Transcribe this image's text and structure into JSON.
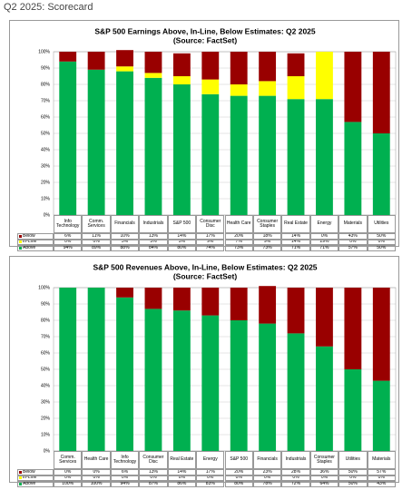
{
  "page_title": "Q2 2025: Scorecard",
  "chart_data": [
    {
      "type": "bar",
      "stacked": true,
      "title": "S&P 500 Earnings Above, In-Line, Below Estimates: Q2 2025",
      "subtitle": "(Source: FactSet)",
      "categories": [
        "Info Technology",
        "Comm. Services",
        "Financials",
        "Industrials",
        "S&P 500",
        "Consumer Disc",
        "Health Care",
        "Consumer Staples",
        "Real Estate",
        "Energy",
        "Materials",
        "Utilities"
      ],
      "series": [
        {
          "name": "Below",
          "color": "#990000",
          "values": [
            6,
            11,
            10,
            13,
            14,
            17,
            20,
            18,
            14,
            0,
            43,
            50
          ],
          "value_labels": [
            "6%",
            "11%",
            "10%",
            "13%",
            "14%",
            "17%",
            "20%",
            "18%",
            "14%",
            "0%",
            "43%",
            "50%"
          ]
        },
        {
          "name": "In-Line",
          "color": "#ffff00",
          "values": [
            0,
            0,
            3,
            3,
            5,
            9,
            7,
            9,
            14,
            29,
            0,
            0
          ],
          "value_labels": [
            "0%",
            "0%",
            "3%",
            "3%",
            "5%",
            "9%",
            "7%",
            "9%",
            "14%",
            "29%",
            "0%",
            "0%"
          ]
        },
        {
          "name": "Above",
          "color": "#00b050",
          "values": [
            94,
            89,
            88,
            84,
            80,
            74,
            73,
            73,
            71,
            71,
            57,
            50
          ],
          "value_labels": [
            "94%",
            "89%",
            "88%",
            "84%",
            "80%",
            "74%",
            "73%",
            "73%",
            "71%",
            "71%",
            "57%",
            "50%"
          ]
        }
      ],
      "ylim": [
        0,
        100
      ],
      "yticks": [
        {
          "value": 0,
          "label": "0%"
        },
        {
          "value": 10,
          "label": "10%"
        },
        {
          "value": 20,
          "label": "20%"
        },
        {
          "value": 30,
          "label": "30%"
        },
        {
          "value": 40,
          "label": "40%"
        },
        {
          "value": 50,
          "label": "50%"
        },
        {
          "value": 60,
          "label": "60%"
        },
        {
          "value": 70,
          "label": "70%"
        },
        {
          "value": 80,
          "label": "80%"
        },
        {
          "value": 90,
          "label": "90%"
        },
        {
          "value": 100,
          "label": "100%"
        }
      ],
      "grid": true
    },
    {
      "type": "bar",
      "stacked": true,
      "title": "S&P 500 Revenues Above, In-Line, Below Estimates: Q2 2025",
      "subtitle": "(Source: FactSet)",
      "categories": [
        "Comm. Services",
        "Health Care",
        "Info Technology",
        "Consumer Disc",
        "Real Estate",
        "Energy",
        "S&P 500",
        "Financials",
        "Industrials",
        "Consumer Staples",
        "Utilities",
        "Materials"
      ],
      "series": [
        {
          "name": "Below",
          "color": "#990000",
          "values": [
            0,
            0,
            6,
            13,
            14,
            17,
            20,
            23,
            28,
            36,
            50,
            57
          ],
          "value_labels": [
            "0%",
            "0%",
            "6%",
            "13%",
            "14%",
            "17%",
            "20%",
            "23%",
            "28%",
            "36%",
            "50%",
            "57%"
          ]
        },
        {
          "name": "In-Line",
          "color": "#ffff00",
          "values": [
            0,
            0,
            0,
            0,
            0,
            0,
            0,
            0,
            0,
            0,
            0,
            0
          ],
          "value_labels": [
            "0%",
            "0%",
            "0%",
            "0%",
            "0%",
            "0%",
            "0%",
            "0%",
            "0%",
            "0%",
            "0%",
            "0%"
          ]
        },
        {
          "name": "Above",
          "color": "#00b050",
          "values": [
            100,
            100,
            94,
            87,
            86,
            83,
            80,
            78,
            72,
            64,
            50,
            43
          ],
          "value_labels": [
            "100%",
            "100%",
            "94%",
            "87%",
            "86%",
            "83%",
            "80%",
            "78%",
            "72%",
            "64%",
            "50%",
            "43%"
          ]
        }
      ],
      "ylim": [
        0,
        100
      ],
      "yticks": [
        {
          "value": 0,
          "label": "0%"
        },
        {
          "value": 10,
          "label": "10%"
        },
        {
          "value": 20,
          "label": "20%"
        },
        {
          "value": 30,
          "label": "30%"
        },
        {
          "value": 40,
          "label": "40%"
        },
        {
          "value": 50,
          "label": "50%"
        },
        {
          "value": 60,
          "label": "60%"
        },
        {
          "value": 70,
          "label": "70%"
        },
        {
          "value": 80,
          "label": "80%"
        },
        {
          "value": 90,
          "label": "90%"
        },
        {
          "value": 100,
          "label": "100%"
        }
      ],
      "grid": true
    }
  ]
}
